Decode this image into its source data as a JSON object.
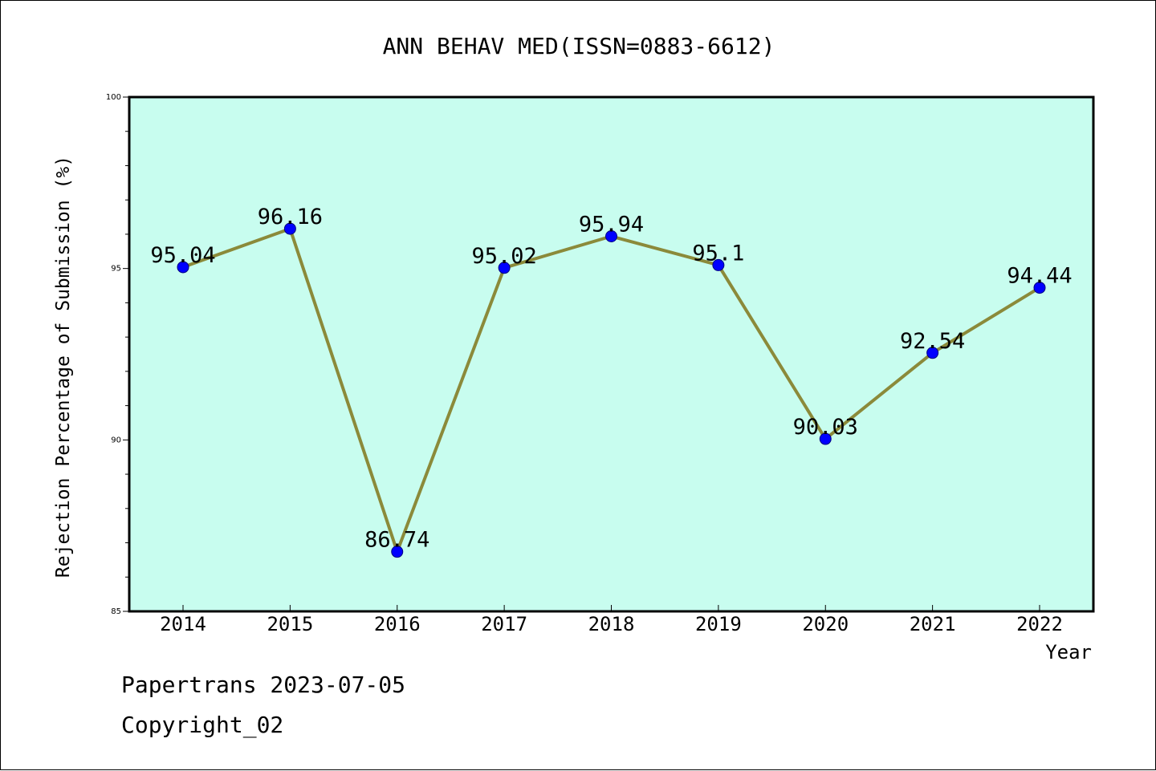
{
  "chart_data": {
    "type": "line",
    "title": "ANN BEHAV MED(ISSN=0883-6612)",
    "xlabel": "Year",
    "ylabel": "Rejection Percentage of Submission (%)",
    "categories": [
      "2014",
      "2015",
      "2016",
      "2017",
      "2018",
      "2019",
      "2020",
      "2021",
      "2022"
    ],
    "values": [
      95.04,
      96.16,
      86.74,
      95.02,
      95.94,
      95.1,
      90.03,
      92.54,
      94.44
    ],
    "data_labels": [
      "95.04",
      "96.16",
      "86.74",
      "95.02",
      "95.94",
      "95.1",
      "90.03",
      "92.54",
      "94.44"
    ],
    "ylim": [
      85,
      100
    ],
    "yticks": [
      "85",
      "90",
      "95",
      "100"
    ],
    "grid": false,
    "colors": {
      "plot_background": "#c8fdef",
      "line": "#8b8a3a",
      "marker_fill": "#0000ff",
      "marker_stroke": "#000080"
    }
  },
  "footer": {
    "source": "Papertrans 2023-07-05",
    "copyright": "Copyright_02"
  }
}
